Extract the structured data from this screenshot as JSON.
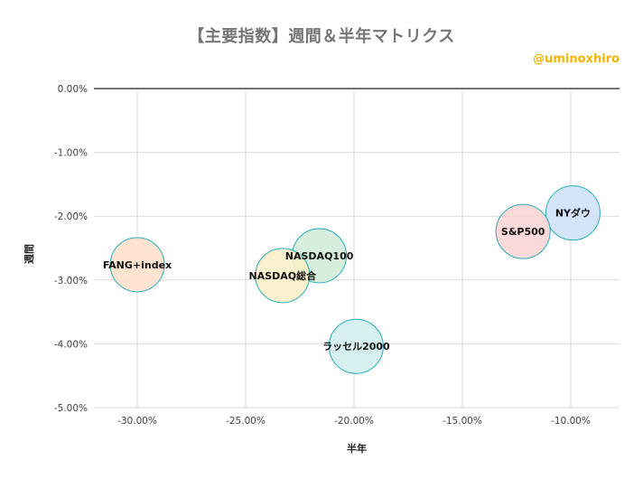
{
  "chart_data": {
    "type": "scatter",
    "title": "【主要指数】週間＆半年マトリクス",
    "watermark": "@uminoxhiro",
    "xlabel": "半年",
    "ylabel": "週間",
    "xlim": [
      -0.32,
      -0.0775
    ],
    "ylim": [
      -0.05,
      0.0
    ],
    "x_ticks": [
      -0.3,
      -0.25,
      -0.2,
      -0.15,
      -0.1
    ],
    "x_tick_labels": [
      "-30.00%",
      "-25.00%",
      "-20.00%",
      "-15.00%",
      "-10.00%"
    ],
    "y_ticks": [
      0.0,
      -0.01,
      -0.02,
      -0.03,
      -0.04,
      -0.05
    ],
    "y_tick_labels": [
      "0.00%",
      "-1.00%",
      "-2.00%",
      "-3.00%",
      "-4.00%",
      "-5.00%"
    ],
    "grid": true,
    "points": [
      {
        "label": "NYダウ",
        "x": -0.099,
        "y": -0.0195,
        "color": "#cfe2fb"
      },
      {
        "label": "S&P500",
        "x": -0.122,
        "y": -0.0224,
        "color": "#fbd5d5"
      },
      {
        "label": "NASDAQ100",
        "x": -0.216,
        "y": -0.0262,
        "color": "#d3ecd8"
      },
      {
        "label": "NASDAQ総合",
        "x": -0.233,
        "y": -0.0293,
        "color": "#fbefc9"
      },
      {
        "label": "ラッセル2000",
        "x": -0.199,
        "y": -0.0404,
        "color": "#d3efef"
      },
      {
        "label": "FANG+index",
        "x": -0.3,
        "y": -0.0276,
        "color": "#fde0cb"
      }
    ]
  }
}
